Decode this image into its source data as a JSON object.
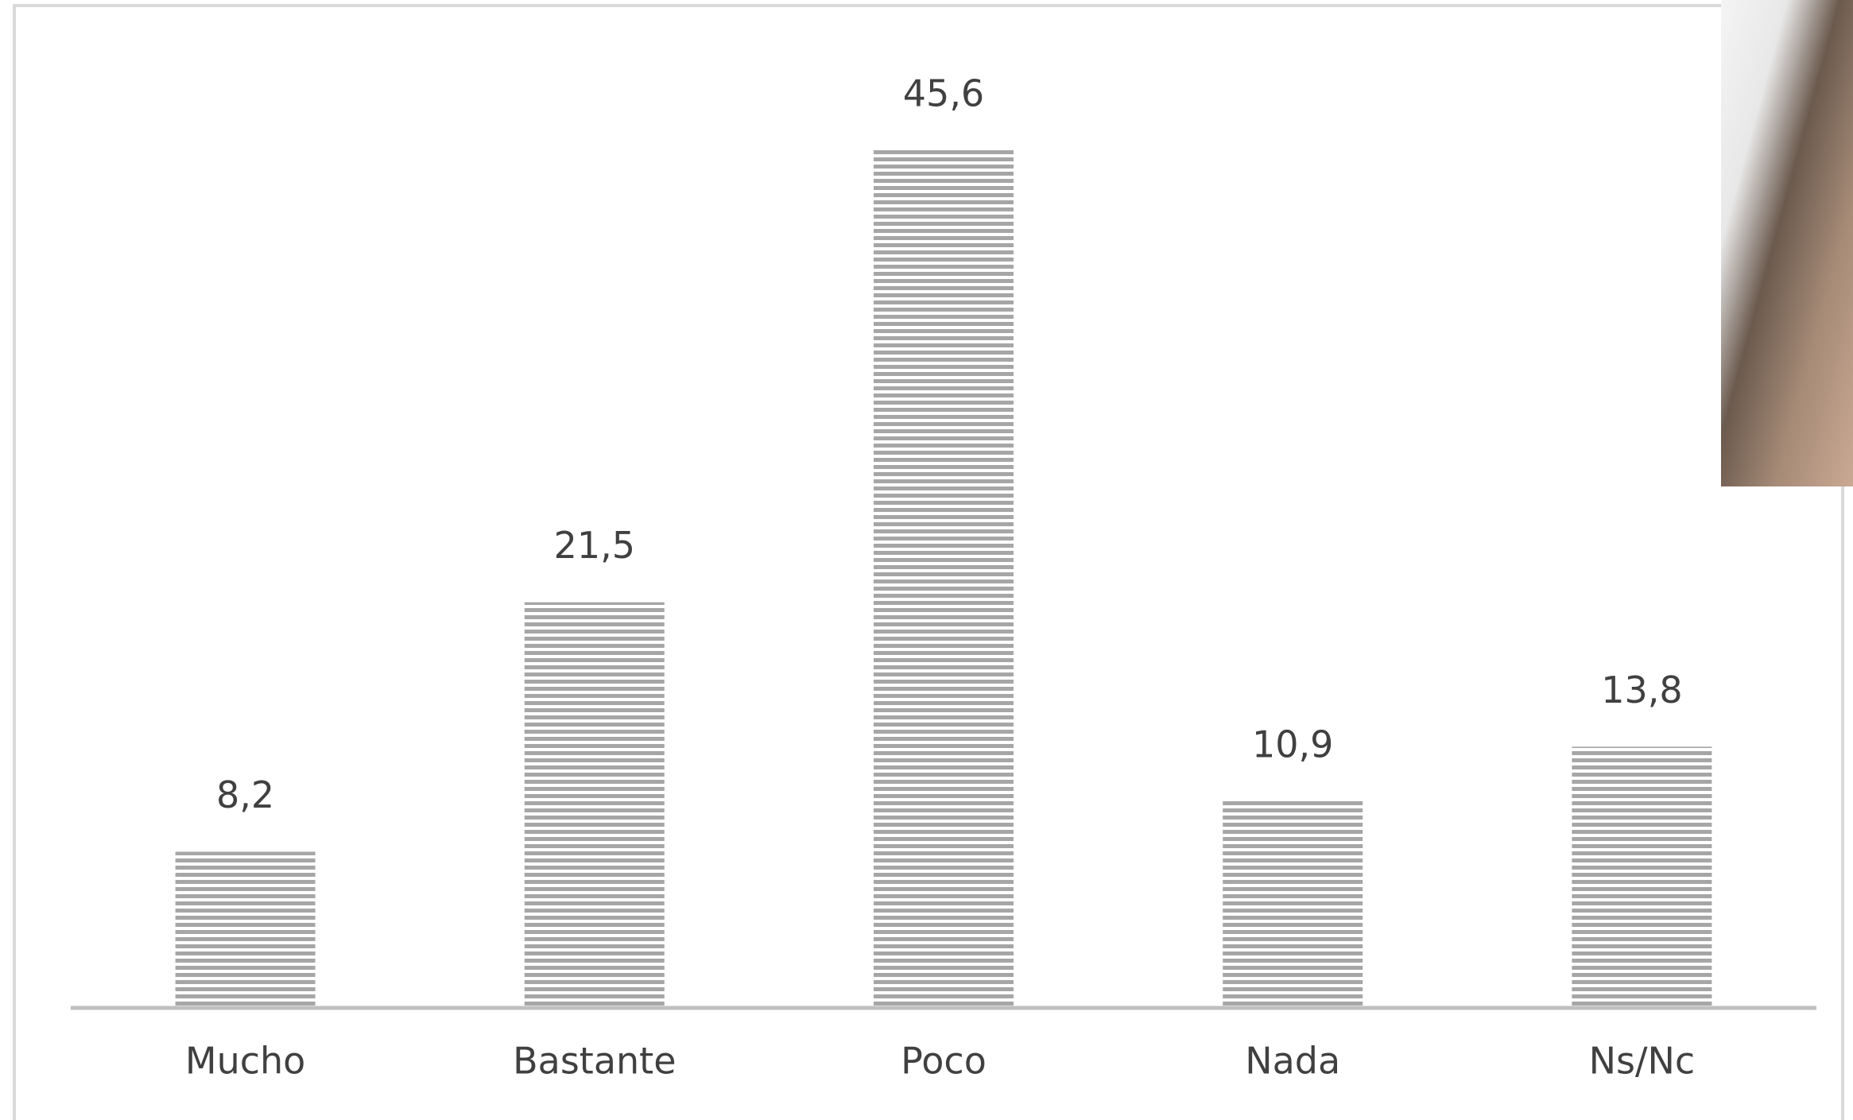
{
  "chart_data": {
    "type": "bar",
    "categories": [
      "Mucho",
      "Bastante",
      "Poco",
      "Nada",
      "Ns/Nc"
    ],
    "values": [
      8.2,
      21.5,
      45.6,
      10.9,
      13.8
    ],
    "value_labels": [
      "8,2",
      "21,5",
      "45,6",
      "10,9",
      "13,8"
    ],
    "color": "#a6a6a6"
  }
}
